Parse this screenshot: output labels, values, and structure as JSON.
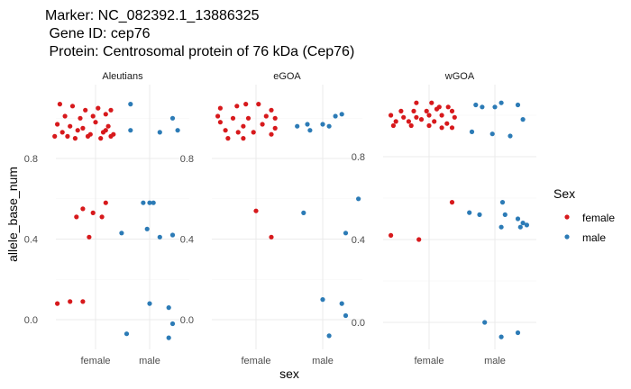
{
  "chart_data": {
    "type": "scatter",
    "title_lines": [
      "Marker: NC_082392.1_13886325",
      " Gene ID: cep76",
      " Protein: Centrosomal protein of 76 kDa (Cep76)"
    ],
    "xlabel": "sex",
    "ylabel": "allele_base_num",
    "x_categories": [
      "female",
      "male"
    ],
    "y_ticks": [
      0.0,
      0.4,
      0.8
    ],
    "y_tick_labels": [
      "0.0",
      "0.4",
      "0.8"
    ],
    "legend": {
      "title": "Sex",
      "position": "right",
      "entries": [
        {
          "key": "female",
          "label": "female",
          "color": "#d7191c"
        },
        {
          "key": "male",
          "label": "male",
          "color": "#2c7bb6"
        }
      ]
    },
    "grid": true,
    "panels": [
      {
        "name": "Aleutians",
        "ylim": [
          -0.1,
          1.1
        ],
        "points": {
          "female": [
            [
              -0.28,
              1.07
            ],
            [
              -0.18,
              1.06
            ],
            [
              -0.08,
              1.04
            ],
            [
              0.02,
              1.05
            ],
            [
              0.12,
              1.04
            ],
            [
              -0.24,
              1.01
            ],
            [
              -0.12,
              1.0
            ],
            [
              -0.02,
              1.01
            ],
            [
              0.08,
              1.02
            ],
            [
              -0.3,
              0.97
            ],
            [
              -0.2,
              0.96
            ],
            [
              -0.1,
              0.95
            ],
            [
              0.0,
              0.98
            ],
            [
              0.1,
              0.96
            ],
            [
              -0.26,
              0.93
            ],
            [
              -0.14,
              0.94
            ],
            [
              -0.04,
              0.92
            ],
            [
              0.06,
              0.93
            ],
            [
              0.14,
              0.92
            ],
            [
              -0.32,
              0.91
            ],
            [
              -0.22,
              0.91
            ],
            [
              -0.06,
              0.91
            ],
            [
              0.04,
              0.9
            ],
            [
              0.12,
              0.91
            ],
            [
              -0.16,
              0.9
            ],
            [
              0.08,
              0.94
            ],
            [
              -0.1,
              0.55
            ],
            [
              0.08,
              0.58
            ],
            [
              -0.02,
              0.53
            ],
            [
              0.05,
              0.51
            ],
            [
              -0.15,
              0.51
            ],
            [
              -0.05,
              0.41
            ],
            [
              -0.3,
              0.08
            ],
            [
              -0.2,
              0.09
            ],
            [
              -0.1,
              0.09
            ]
          ],
          "male": [
            [
              -0.15,
              1.07
            ],
            [
              0.18,
              1.0
            ],
            [
              -0.15,
              0.94
            ],
            [
              0.08,
              0.93
            ],
            [
              0.22,
              0.94
            ],
            [
              -0.05,
              0.58
            ],
            [
              0.0,
              0.58
            ],
            [
              0.03,
              0.58
            ],
            [
              -0.22,
              0.43
            ],
            [
              -0.02,
              0.45
            ],
            [
              0.08,
              0.41
            ],
            [
              0.18,
              0.42
            ],
            [
              0.0,
              0.08
            ],
            [
              0.15,
              0.06
            ],
            [
              -0.18,
              -0.07
            ],
            [
              0.15,
              -0.09
            ],
            [
              0.18,
              -0.02
            ]
          ]
        }
      },
      {
        "name": "eGOA",
        "ylim": [
          -0.1,
          1.1
        ],
        "points": {
          "female": [
            [
              -0.28,
              1.05
            ],
            [
              -0.15,
              1.06
            ],
            [
              -0.08,
              1.07
            ],
            [
              0.02,
              1.07
            ],
            [
              0.12,
              1.04
            ],
            [
              -0.3,
              1.01
            ],
            [
              -0.18,
              1.0
            ],
            [
              -0.06,
              1.0
            ],
            [
              0.08,
              1.01
            ],
            [
              0.15,
              1.0
            ],
            [
              -0.28,
              0.98
            ],
            [
              -0.1,
              0.96
            ],
            [
              0.05,
              0.97
            ],
            [
              0.15,
              0.95
            ],
            [
              -0.24,
              0.94
            ],
            [
              -0.14,
              0.93
            ],
            [
              -0.02,
              0.93
            ],
            [
              0.12,
              0.92
            ],
            [
              -0.22,
              0.9
            ],
            [
              -0.1,
              0.9
            ],
            [
              0.0,
              0.54
            ],
            [
              0.12,
              0.41
            ]
          ],
          "male": [
            [
              -0.2,
              0.96
            ],
            [
              -0.12,
              0.97
            ],
            [
              0.0,
              0.97
            ],
            [
              0.05,
              0.96
            ],
            [
              0.1,
              1.01
            ],
            [
              0.15,
              1.02
            ],
            [
              -0.1,
              0.94
            ],
            [
              0.28,
              0.6
            ],
            [
              -0.15,
              0.53
            ],
            [
              0.18,
              0.43
            ],
            [
              0.0,
              0.1
            ],
            [
              0.15,
              0.08
            ],
            [
              0.18,
              0.02
            ],
            [
              0.05,
              -0.08
            ]
          ]
        }
      },
      {
        "name": "wGOA",
        "ylim": [
          -0.1,
          1.1
        ],
        "points": {
          "female": [
            [
              -0.1,
              1.06
            ],
            [
              0.02,
              1.06
            ],
            [
              0.08,
              1.04
            ],
            [
              0.15,
              1.04
            ],
            [
              -0.22,
              1.02
            ],
            [
              -0.12,
              1.02
            ],
            [
              -0.02,
              1.02
            ],
            [
              0.06,
              1.03
            ],
            [
              0.18,
              1.02
            ],
            [
              -0.3,
              1.0
            ],
            [
              -0.2,
              0.99
            ],
            [
              -0.1,
              0.99
            ],
            [
              0.0,
              1.0
            ],
            [
              0.1,
              1.0
            ],
            [
              0.2,
              0.99
            ],
            [
              -0.26,
              0.97
            ],
            [
              -0.16,
              0.97
            ],
            [
              -0.06,
              0.98
            ],
            [
              0.04,
              0.97
            ],
            [
              0.14,
              0.96
            ],
            [
              -0.28,
              0.95
            ],
            [
              -0.14,
              0.95
            ],
            [
              0.0,
              0.95
            ],
            [
              0.1,
              0.94
            ],
            [
              0.18,
              0.94
            ],
            [
              0.18,
              0.58
            ],
            [
              -0.3,
              0.42
            ],
            [
              -0.08,
              0.4
            ]
          ],
          "male": [
            [
              -0.15,
              1.05
            ],
            [
              -0.1,
              1.04
            ],
            [
              0.0,
              1.04
            ],
            [
              0.05,
              1.06
            ],
            [
              0.18,
              1.05
            ],
            [
              0.22,
              0.98
            ],
            [
              -0.18,
              0.92
            ],
            [
              -0.02,
              0.91
            ],
            [
              0.12,
              0.9
            ],
            [
              0.06,
              0.58
            ],
            [
              -0.2,
              0.53
            ],
            [
              -0.12,
              0.52
            ],
            [
              0.08,
              0.52
            ],
            [
              0.18,
              0.5
            ],
            [
              0.22,
              0.48
            ],
            [
              0.25,
              0.47
            ],
            [
              0.05,
              0.46
            ],
            [
              0.2,
              0.46
            ],
            [
              -0.08,
              0.0
            ],
            [
              0.05,
              -0.07
            ],
            [
              0.18,
              -0.05
            ]
          ]
        }
      }
    ]
  }
}
